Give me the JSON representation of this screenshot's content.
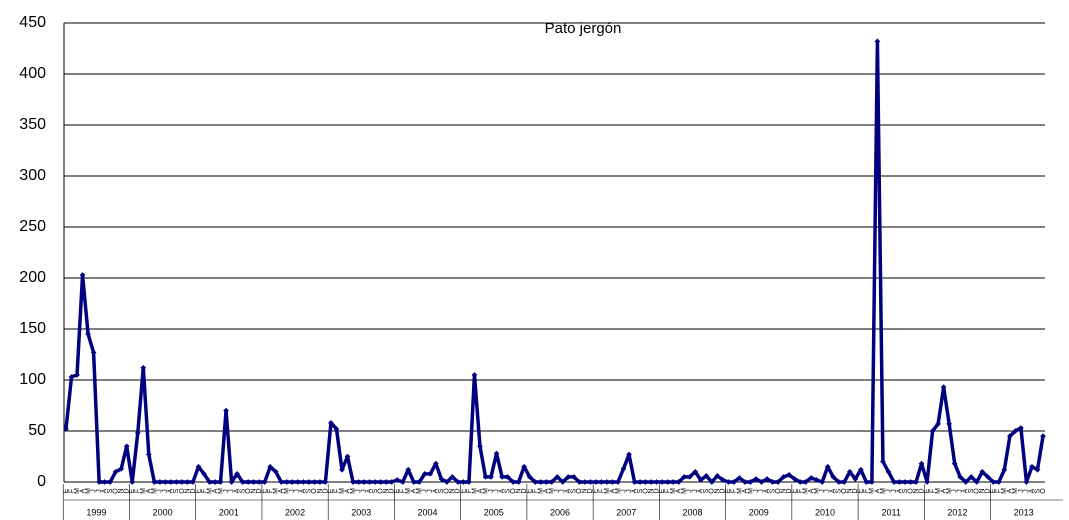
{
  "chart_data": {
    "type": "line",
    "title": "Pato jergón",
    "categories": [
      "E",
      "F",
      "M",
      "A",
      "M",
      "J",
      "J",
      "A",
      "S",
      "O",
      "N",
      "D",
      "E",
      "F",
      "M",
      "A",
      "M",
      "J",
      "J",
      "A",
      "S",
      "O",
      "N",
      "D",
      "E",
      "F",
      "M",
      "A",
      "M",
      "J",
      "J",
      "A",
      "S",
      "O",
      "N",
      "D",
      "E",
      "F",
      "M",
      "A",
      "M",
      "J",
      "J",
      "A",
      "S",
      "O",
      "N",
      "D",
      "E",
      "F",
      "M",
      "A",
      "M",
      "J",
      "J",
      "A",
      "S",
      "O",
      "N",
      "D",
      "E",
      "F",
      "M",
      "A",
      "M",
      "J",
      "J",
      "A",
      "S",
      "O",
      "N",
      "D",
      "E",
      "F",
      "M",
      "A",
      "M",
      "J",
      "J",
      "A",
      "S",
      "O",
      "N",
      "D",
      "E",
      "F",
      "M",
      "A",
      "M",
      "J",
      "J",
      "A",
      "S",
      "O",
      "N",
      "D",
      "E",
      "F",
      "M",
      "A",
      "M",
      "J",
      "J",
      "A",
      "S",
      "O",
      "N",
      "D",
      "E",
      "F",
      "M",
      "A",
      "M",
      "J",
      "J",
      "A",
      "S",
      "O",
      "N",
      "D",
      "E",
      "F",
      "M",
      "A",
      "M",
      "J",
      "J",
      "A",
      "S",
      "O",
      "N",
      "D",
      "E",
      "F",
      "M",
      "A",
      "M",
      "J",
      "J",
      "A",
      "S",
      "O",
      "N",
      "D",
      "E",
      "F",
      "M",
      "A",
      "M",
      "J",
      "J",
      "A",
      "S",
      "O",
      "N",
      "D",
      "E",
      "F",
      "M",
      "A",
      "M",
      "J",
      "J",
      "A",
      "S",
      "O",
      "N",
      "D",
      "E",
      "F",
      "M",
      "A",
      "M",
      "J",
      "J",
      "A",
      "S",
      "O"
    ],
    "year_labels": [
      "1999",
      "2000",
      "2001",
      "2002",
      "2003",
      "2004",
      "2005",
      "2006",
      "2007",
      "2008",
      "2009",
      "2010",
      "2011",
      "2012",
      "2013"
    ],
    "series": [
      {
        "name": "Pato jergón",
        "color": "#000080",
        "values": [
          52,
          103,
          105,
          203,
          145,
          127,
          0,
          0,
          0,
          10,
          13,
          35,
          0,
          48,
          112,
          27,
          0,
          0,
          0,
          0,
          0,
          0,
          0,
          0,
          15,
          8,
          0,
          0,
          0,
          70,
          0,
          8,
          0,
          0,
          0,
          0,
          0,
          15,
          10,
          0,
          0,
          0,
          0,
          0,
          0,
          0,
          0,
          0,
          58,
          52,
          12,
          25,
          0,
          0,
          0,
          0,
          0,
          0,
          0,
          0,
          2,
          0,
          12,
          0,
          0,
          8,
          8,
          18,
          3,
          0,
          5,
          0,
          0,
          0,
          105,
          35,
          5,
          5,
          28,
          5,
          5,
          0,
          0,
          15,
          5,
          0,
          0,
          0,
          0,
          5,
          0,
          5,
          5,
          0,
          0,
          0,
          0,
          0,
          0,
          0,
          0,
          13,
          27,
          0,
          0,
          0,
          0,
          0,
          0,
          0,
          0,
          0,
          5,
          5,
          10,
          2,
          6,
          0,
          6,
          2,
          0,
          0,
          4,
          0,
          0,
          3,
          0,
          3,
          0,
          0,
          5,
          7,
          3,
          0,
          0,
          4,
          2,
          0,
          15,
          5,
          0,
          0,
          10,
          3,
          12,
          0,
          0,
          432,
          20,
          10,
          0,
          0,
          0,
          0,
          0,
          18,
          0,
          50,
          57,
          93,
          57,
          18,
          5,
          0,
          5,
          0,
          10,
          5,
          0,
          0,
          12,
          45,
          50,
          53,
          0,
          15,
          12,
          45
        ]
      }
    ],
    "ylim": [
      0,
      450
    ],
    "yticks": [
      0,
      50,
      100,
      150,
      200,
      250,
      300,
      350,
      400,
      450
    ],
    "grid": true
  }
}
